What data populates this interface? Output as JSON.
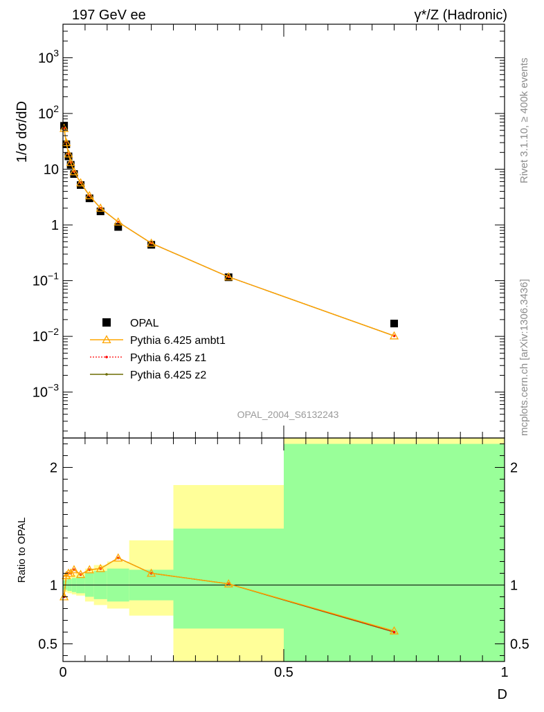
{
  "header": {
    "left": "197 GeV ee",
    "right": "γ*/Z (Hadronic)"
  },
  "side_labels": {
    "rivet": "Rivet 3.1.10, ≥ 400k events",
    "mcplots": "mcplots.cern.ch [arXiv:1306.3436]"
  },
  "watermark": "OPAL_2004_S6132243",
  "colors": {
    "data": "#000000",
    "ambt1": "#ffa500",
    "z1": "#ff0000",
    "z2": "#6b6b00",
    "band_inner": "#99ff99",
    "band_outer": "#ffff99"
  },
  "chart_data": [
    {
      "type": "line",
      "panel": "main",
      "ylabel": "1/σ dσ/dD",
      "yscale": "log",
      "ylim": [
        0.00015,
        4000
      ],
      "xlim": [
        0,
        1
      ],
      "y_tick_labels": [
        "10^-3",
        "10^-2",
        "10^-1",
        "1",
        "10",
        "10^2",
        "10^3"
      ],
      "legend_placement": "lower-left",
      "series": [
        {
          "name": "OPAL",
          "marker": "square",
          "x": [
            0.0025,
            0.0075,
            0.0125,
            0.0175,
            0.025,
            0.04,
            0.06,
            0.085,
            0.125,
            0.2,
            0.375,
            0.75
          ],
          "y": [
            60,
            28,
            17,
            12,
            8.2,
            5.2,
            3.0,
            1.75,
            0.92,
            0.44,
            0.115,
            0.017
          ]
        },
        {
          "name": "Pythia 6.425 ambt1",
          "marker": "triangle",
          "x": [
            0.0025,
            0.0075,
            0.0125,
            0.0175,
            0.025,
            0.04,
            0.06,
            0.085,
            0.125,
            0.2,
            0.375,
            0.75
          ],
          "y": [
            54,
            30,
            18.8,
            13.2,
            9.0,
            5.7,
            3.35,
            2.0,
            1.13,
            0.47,
            0.117,
            0.0102
          ]
        },
        {
          "name": "Pythia 6.425 z1",
          "marker": "dot",
          "x": [
            0.0025,
            0.0075,
            0.0125,
            0.0175,
            0.025,
            0.04,
            0.06,
            0.085,
            0.125,
            0.2,
            0.375,
            0.75
          ],
          "y": [
            54,
            30,
            18.8,
            13.2,
            9.0,
            5.7,
            3.35,
            2.0,
            1.13,
            0.47,
            0.117,
            0.0102
          ]
        },
        {
          "name": "Pythia 6.425 z2",
          "marker": "dot",
          "x": [
            0.0025,
            0.0075,
            0.0125,
            0.0175,
            0.025,
            0.04,
            0.06,
            0.085,
            0.125,
            0.2,
            0.375,
            0.75
          ],
          "y": [
            54,
            30,
            18.8,
            13.2,
            9.0,
            5.7,
            3.35,
            2.0,
            1.13,
            0.47,
            0.117,
            0.0102
          ]
        }
      ]
    },
    {
      "type": "line",
      "panel": "ratio",
      "ylabel": "Ratio to OPAL",
      "xlabel": "D",
      "ylim": [
        0.35,
        2.25
      ],
      "xlim": [
        0,
        1
      ],
      "y_ticks": [
        0.5,
        1,
        2
      ],
      "y_tick_labels": [
        "0.5",
        "1",
        "2"
      ],
      "x_ticks": [
        0,
        0.5,
        1
      ],
      "x_tick_labels": [
        "0",
        "0.5",
        "1"
      ],
      "reference_line": 1,
      "uncertainty_bands": {
        "bin_edges": [
          0,
          0.005,
          0.01,
          0.015,
          0.02,
          0.03,
          0.05,
          0.07,
          0.1,
          0.15,
          0.25,
          0.5,
          1.0
        ],
        "inner": [
          [
            0.96,
            1.04
          ],
          [
            0.96,
            1.04
          ],
          [
            0.95,
            1.05
          ],
          [
            0.95,
            1.05
          ],
          [
            0.94,
            1.06
          ],
          [
            0.93,
            1.07
          ],
          [
            0.9,
            1.1
          ],
          [
            0.88,
            1.12
          ],
          [
            0.86,
            1.14
          ],
          [
            0.87,
            1.13
          ],
          [
            0.63,
            1.48
          ],
          [
            0.01,
            2.2
          ]
        ],
        "outer": [
          [
            0.94,
            1.06
          ],
          [
            0.94,
            1.06
          ],
          [
            0.93,
            1.07
          ],
          [
            0.93,
            1.07
          ],
          [
            0.92,
            1.09
          ],
          [
            0.91,
            1.1
          ],
          [
            0.86,
            1.14
          ],
          [
            0.83,
            1.17
          ],
          [
            0.8,
            1.2
          ],
          [
            0.74,
            1.38
          ],
          [
            0.01,
            1.85
          ],
          [
            0.01,
            2.3
          ]
        ]
      },
      "series": [
        {
          "name": "Pythia 6.425 ambt1",
          "marker": "triangle",
          "x": [
            0.0025,
            0.0075,
            0.0125,
            0.0175,
            0.025,
            0.04,
            0.06,
            0.085,
            0.125,
            0.2,
            0.375,
            0.75
          ],
          "y": [
            0.9,
            1.08,
            1.1,
            1.1,
            1.13,
            1.09,
            1.13,
            1.14,
            1.23,
            1.1,
            1.01,
            0.61
          ]
        },
        {
          "name": "Pythia 6.425 z1",
          "marker": "dot",
          "x": [
            0.0025,
            0.0075,
            0.0125,
            0.0175,
            0.025,
            0.04,
            0.06,
            0.085,
            0.125,
            0.2,
            0.375,
            0.75
          ],
          "y": [
            0.9,
            1.08,
            1.1,
            1.1,
            1.13,
            1.09,
            1.13,
            1.14,
            1.23,
            1.1,
            1.01,
            0.6
          ]
        },
        {
          "name": "Pythia 6.425 z2",
          "marker": "dot",
          "x": [
            0.0025,
            0.0075,
            0.0125,
            0.0175,
            0.025,
            0.04,
            0.06,
            0.085,
            0.125,
            0.2,
            0.375,
            0.75
          ],
          "y": [
            0.9,
            1.08,
            1.1,
            1.1,
            1.13,
            1.09,
            1.13,
            1.14,
            1.23,
            1.1,
            1.01,
            0.6
          ]
        }
      ]
    }
  ]
}
